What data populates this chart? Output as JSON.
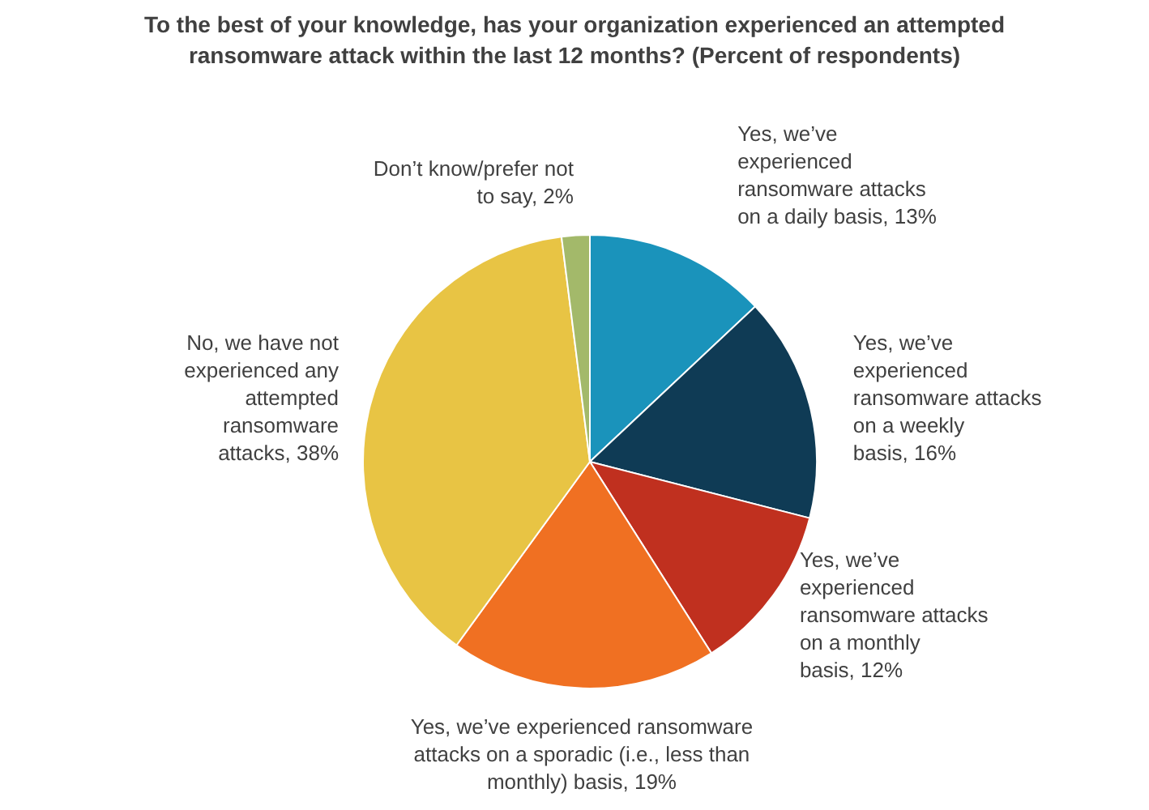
{
  "chart_data": {
    "type": "pie",
    "title": "To the best of your knowledge, has your organization experienced an attempted ransomware attack within the last 12 months? (Percent of respondents)",
    "categories": [
      "Yes, we’ve experienced ransomware attacks on a daily basis",
      "Yes, we’ve experienced ransomware attacks on a weekly basis",
      "Yes, we’ve experienced ransomware attacks on a monthly basis",
      "Yes, we’ve experienced ransomware attacks on a sporadic (i.e., less than monthly) basis",
      "No, we have not experienced any attempted ransomware attacks",
      "Don’t know/prefer not to say"
    ],
    "values": [
      13,
      16,
      12,
      19,
      38,
      2
    ],
    "value_labels": [
      "13%",
      "16%",
      "12%",
      "19%",
      "38%",
      "2%"
    ],
    "colors": [
      "#1a93bb",
      "#0f3b55",
      "#c0301f",
      "#f07022",
      "#e8c444",
      "#a3b96a"
    ]
  }
}
